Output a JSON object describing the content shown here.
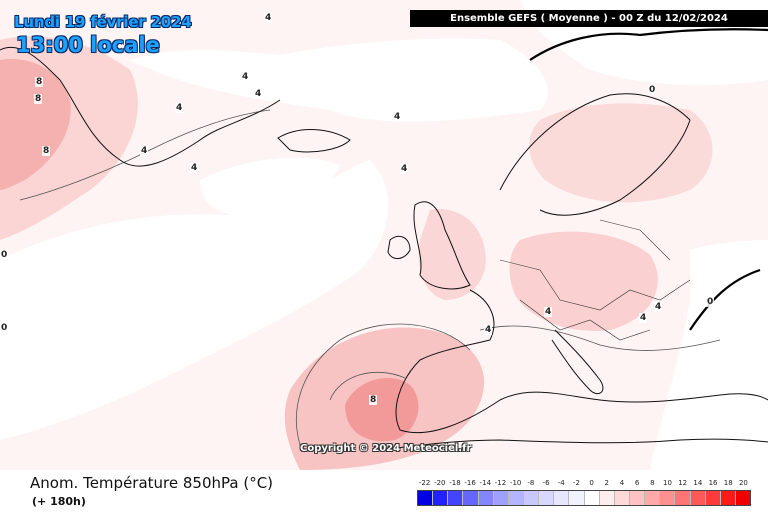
{
  "header": {
    "date": "Lundi 19 février 2024",
    "local_time": "13:00 locale",
    "model_run": "Ensemble GEFS  ( Moyenne )  -  00 Z du 12/02/2024"
  },
  "map": {
    "watermark": "Copyright © 2024 Meteociel.fr",
    "isoline_labels": [
      {
        "id": "iso-1",
        "text": "4"
      },
      {
        "id": "iso-2",
        "text": "4"
      },
      {
        "id": "iso-3",
        "text": "8"
      },
      {
        "id": "iso-4",
        "text": "8"
      },
      {
        "id": "iso-5",
        "text": "4"
      },
      {
        "id": "iso-6",
        "text": "4"
      },
      {
        "id": "iso-7",
        "text": "4"
      },
      {
        "id": "iso-8",
        "text": "4"
      },
      {
        "id": "iso-9",
        "text": "4"
      },
      {
        "id": "iso-10",
        "text": "0"
      },
      {
        "id": "iso-11",
        "text": "4"
      },
      {
        "id": "iso-12",
        "text": "4"
      },
      {
        "id": "iso-13",
        "text": "4"
      },
      {
        "id": "iso-14",
        "text": "8"
      },
      {
        "id": "iso-15",
        "text": "4"
      },
      {
        "id": "iso-16",
        "text": "4"
      },
      {
        "id": "iso-17",
        "text": "0"
      },
      {
        "id": "iso-18",
        "text": "0"
      },
      {
        "id": "iso-19",
        "text": "0"
      },
      {
        "id": "iso-20",
        "text": "8"
      }
    ]
  },
  "footer": {
    "parameter": "Anom. Température 850hPa (°C)",
    "lead_time": "(+ 180h)"
  },
  "color_scale": {
    "ticks": [
      "-22",
      "-20",
      "-18",
      "-16",
      "-14",
      "-12",
      "-10",
      "-8",
      "-6",
      "-4",
      "-2",
      "0",
      "2",
      "4",
      "6",
      "8",
      "10",
      "12",
      "14",
      "16",
      "18",
      "20"
    ],
    "colors": [
      "#0000e0",
      "#2222ff",
      "#4444ff",
      "#6666ff",
      "#8585ff",
      "#a0a0ff",
      "#b5b5ff",
      "#c8c8ff",
      "#d8d8ff",
      "#e6e6ff",
      "#f2f2ff",
      "#ffffff",
      "#ffeded",
      "#ffd8d8",
      "#ffc2c2",
      "#ffaaaa",
      "#ff9090",
      "#ff7575",
      "#ff5858",
      "#ff3a3a",
      "#ff1a1a",
      "#f00000"
    ]
  }
}
